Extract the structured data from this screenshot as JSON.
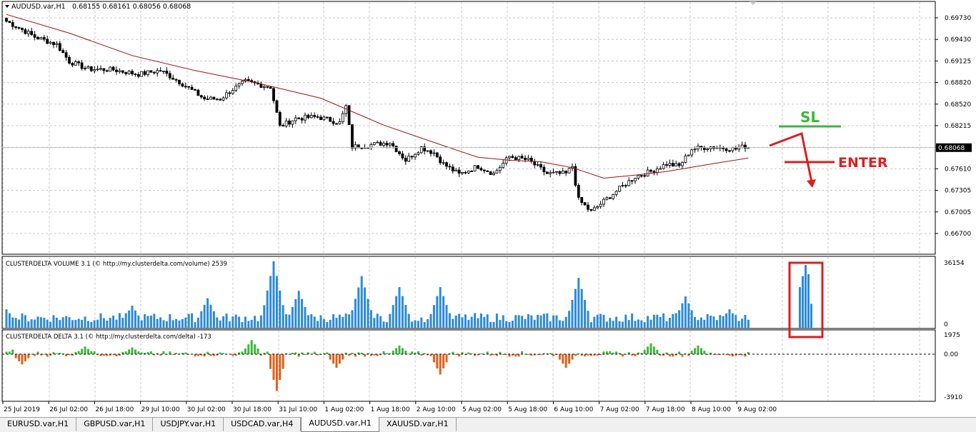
{
  "window": {
    "symbol_label": "AUDUSD.var,H1",
    "ohlc": "0.68155 0.68161 0.68056 0.68068"
  },
  "colors": {
    "bull_candle": "#ffffff",
    "bear_candle": "#000000",
    "moving_average": "#a01010",
    "volume_bars": "#2b8ad8",
    "delta_positive": "#3cb73c",
    "delta_negative": "#e0601b",
    "annotation_sl": "#3cb73c",
    "annotation_enter": "#dd1e1e",
    "price_tag": "#000000"
  },
  "price_axis": {
    "labels": [
      "0.69730",
      "0.69430",
      "0.69125",
      "0.68820",
      "0.68520",
      "0.68215",
      "0.67915",
      "0.67610",
      "0.67305",
      "0.67005",
      "0.66700"
    ],
    "current_price": "0.68068"
  },
  "time_axis": {
    "labels": [
      "25 Jul 2019",
      "26 Jul 02:00",
      "26 Jul 18:00",
      "29 Jul 10:00",
      "30 Jul 02:00",
      "30 Jul 18:00",
      "31 Jul 10:00",
      "1 Aug 02:00",
      "1 Aug 18:00",
      "2 Aug 10:00",
      "5 Aug 02:00",
      "5 Aug 18:00",
      "6 Aug 10:00",
      "7 Aug 02:00",
      "7 Aug 18:00",
      "8 Aug 10:00",
      "9 Aug 02:00"
    ]
  },
  "annotations": {
    "sl_label": "SL",
    "enter_label": "ENTER"
  },
  "volume_panel": {
    "title": "CLUSTERDELTA VOLUME 3.1 (© http://my.clusterdelta.com/volume) 2539",
    "axis_max": "36154",
    "axis_min": "0"
  },
  "delta_panel": {
    "title": "CLUSTERDELTA DELTA 3.1 (© http://my.clusterdelta.com/delta) -173",
    "axis_max": "1975",
    "axis_zero": "0.00",
    "axis_min": "-3910"
  },
  "chart_data": {
    "type": "candlestick",
    "symbol": "AUDUSD.var",
    "timeframe": "H1",
    "ylim": [
      0.667,
      0.699
    ],
    "price_path": [
      [
        0,
        0.6976
      ],
      [
        4,
        0.6967
      ],
      [
        9,
        0.6955
      ],
      [
        16,
        0.6945
      ],
      [
        20,
        0.6922
      ],
      [
        26,
        0.6912
      ],
      [
        34,
        0.6911
      ],
      [
        42,
        0.6905
      ],
      [
        49,
        0.691
      ],
      [
        55,
        0.6895
      ],
      [
        63,
        0.6872
      ],
      [
        68,
        0.6872
      ],
      [
        72,
        0.6885
      ],
      [
        76,
        0.6895
      ],
      [
        84,
        0.6888
      ],
      [
        87,
        0.6835
      ],
      [
        92,
        0.6846
      ],
      [
        99,
        0.6848
      ],
      [
        106,
        0.684
      ],
      [
        108,
        0.6862
      ],
      [
        110,
        0.6808
      ],
      [
        115,
        0.681
      ],
      [
        122,
        0.6814
      ],
      [
        127,
        0.679
      ],
      [
        132,
        0.6807
      ],
      [
        136,
        0.68
      ],
      [
        139,
        0.6785
      ],
      [
        144,
        0.6771
      ],
      [
        150,
        0.6782
      ],
      [
        155,
        0.6772
      ],
      [
        160,
        0.6795
      ],
      [
        166,
        0.679
      ],
      [
        172,
        0.6772
      ],
      [
        178,
        0.6772
      ],
      [
        180,
        0.6782
      ],
      [
        182,
        0.6737
      ],
      [
        186,
        0.6721
      ],
      [
        190,
        0.6735
      ],
      [
        195,
        0.6752
      ],
      [
        200,
        0.6768
      ],
      [
        205,
        0.6775
      ],
      [
        210,
        0.6785
      ],
      [
        214,
        0.6782
      ],
      [
        218,
        0.6805
      ],
      [
        224,
        0.6808
      ],
      [
        232,
        0.6805
      ],
      [
        236,
        0.681
      ]
    ],
    "moving_average": [
      [
        0,
        0.6985
      ],
      [
        20,
        0.696
      ],
      [
        40,
        0.693
      ],
      [
        60,
        0.691
      ],
      [
        80,
        0.6893
      ],
      [
        100,
        0.6873
      ],
      [
        120,
        0.6837
      ],
      [
        140,
        0.6808
      ],
      [
        150,
        0.6794
      ],
      [
        160,
        0.679
      ],
      [
        170,
        0.6788
      ],
      [
        180,
        0.678
      ],
      [
        190,
        0.6766
      ],
      [
        200,
        0.677
      ],
      [
        210,
        0.6775
      ],
      [
        220,
        0.6782
      ],
      [
        236,
        0.6793
      ]
    ],
    "volume_peak_bars": [
      [
        0,
        10
      ],
      [
        40,
        12
      ],
      [
        64,
        16
      ],
      [
        85,
        36
      ],
      [
        93,
        20
      ],
      [
        113,
        28
      ],
      [
        125,
        22
      ],
      [
        138,
        22
      ],
      [
        182,
        27
      ],
      [
        216,
        17
      ],
      [
        230,
        10
      ]
    ],
    "volume_zoom_bars": [
      22,
      28,
      34,
      29,
      13
    ],
    "delta_events": [
      [
        3,
        600
      ],
      [
        5,
        -900
      ],
      [
        25,
        700
      ],
      [
        40,
        620
      ],
      [
        78,
        1300
      ],
      [
        86,
        -3250
      ],
      [
        105,
        -1200
      ],
      [
        125,
        800
      ],
      [
        138,
        -1800
      ],
      [
        178,
        -1200
      ],
      [
        205,
        1000
      ],
      [
        220,
        800
      ],
      [
        231,
        -200
      ]
    ]
  }
}
